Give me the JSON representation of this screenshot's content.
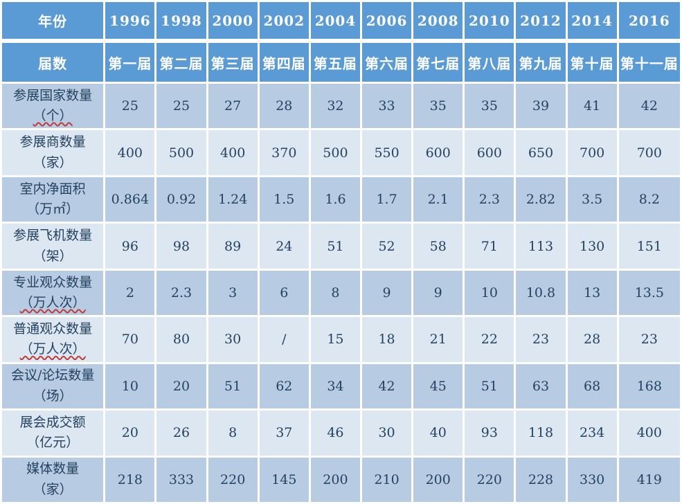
{
  "chart_data": {
    "type": "table",
    "header": {
      "year_row_label": "年份",
      "session_row_label": "届数",
      "years": [
        "1996",
        "1998",
        "2000",
        "2002",
        "2004",
        "2006",
        "2008",
        "2010",
        "2012",
        "2014",
        "2016"
      ],
      "sessions": [
        "第一届",
        "第二届",
        "第三届",
        "第四届",
        "第五届",
        "第六届",
        "第七届",
        "第八届",
        "第九届",
        "第十届",
        "第十一届"
      ]
    },
    "rows": [
      {
        "label": "参展国家数量",
        "unit": "（个）",
        "unit_wavy": true,
        "values": [
          "25",
          "25",
          "27",
          "28",
          "32",
          "33",
          "35",
          "35",
          "39",
          "41",
          "42"
        ]
      },
      {
        "label": "参展商数量",
        "unit": "（家）",
        "unit_wavy": false,
        "values": [
          "400",
          "500",
          "400",
          "370",
          "500",
          "550",
          "600",
          "600",
          "650",
          "700",
          "700"
        ]
      },
      {
        "label": "室内净面积",
        "unit": "（万㎡）",
        "unit_wavy": false,
        "values": [
          "0.864",
          "0.92",
          "1.24",
          "1.5",
          "1.6",
          "1.7",
          "2.1",
          "2.3",
          "2.82",
          "3.5",
          "8.2"
        ]
      },
      {
        "label": "参展飞机数量",
        "unit": "（架）",
        "unit_wavy": false,
        "values": [
          "96",
          "98",
          "89",
          "24",
          "51",
          "52",
          "58",
          "71",
          "113",
          "130",
          "151"
        ]
      },
      {
        "label": "专业观众数量",
        "unit": "（万人次）",
        "unit_wavy": true,
        "values": [
          "2",
          "2.3",
          "3",
          "6",
          "8",
          "9",
          "9",
          "10",
          "10.8",
          "13",
          "13.5"
        ]
      },
      {
        "label": "普通观众数量",
        "unit": "（万人次）",
        "unit_wavy": true,
        "values": [
          "70",
          "80",
          "30",
          "/",
          "15",
          "18",
          "21",
          "22",
          "23",
          "28",
          "23"
        ]
      },
      {
        "label": "会议/论坛数量",
        "unit": "（场）",
        "unit_wavy": false,
        "values": [
          "10",
          "20",
          "51",
          "62",
          "34",
          "42",
          "45",
          "51",
          "63",
          "68",
          "168"
        ]
      },
      {
        "label": "展会成交额",
        "unit": "（亿元）",
        "unit_wavy": false,
        "values": [
          "20",
          "26",
          "8",
          "37",
          "46",
          "30",
          "40",
          "93",
          "118",
          "234",
          "400"
        ]
      },
      {
        "label": "媒体数量",
        "unit": "（家）",
        "unit_wavy": false,
        "values": [
          "218",
          "333",
          "220",
          "145",
          "200",
          "210",
          "200",
          "220",
          "228",
          "330",
          "419"
        ]
      }
    ]
  },
  "colors": {
    "header_bg": "#5b9bd5",
    "row_dark": "#b7cbe3",
    "row_light": "#dde7f2",
    "grid": "#ffffff",
    "header_text": "#ffffff",
    "body_text": "#24425f",
    "wavy_underline": "#c23b3b"
  }
}
